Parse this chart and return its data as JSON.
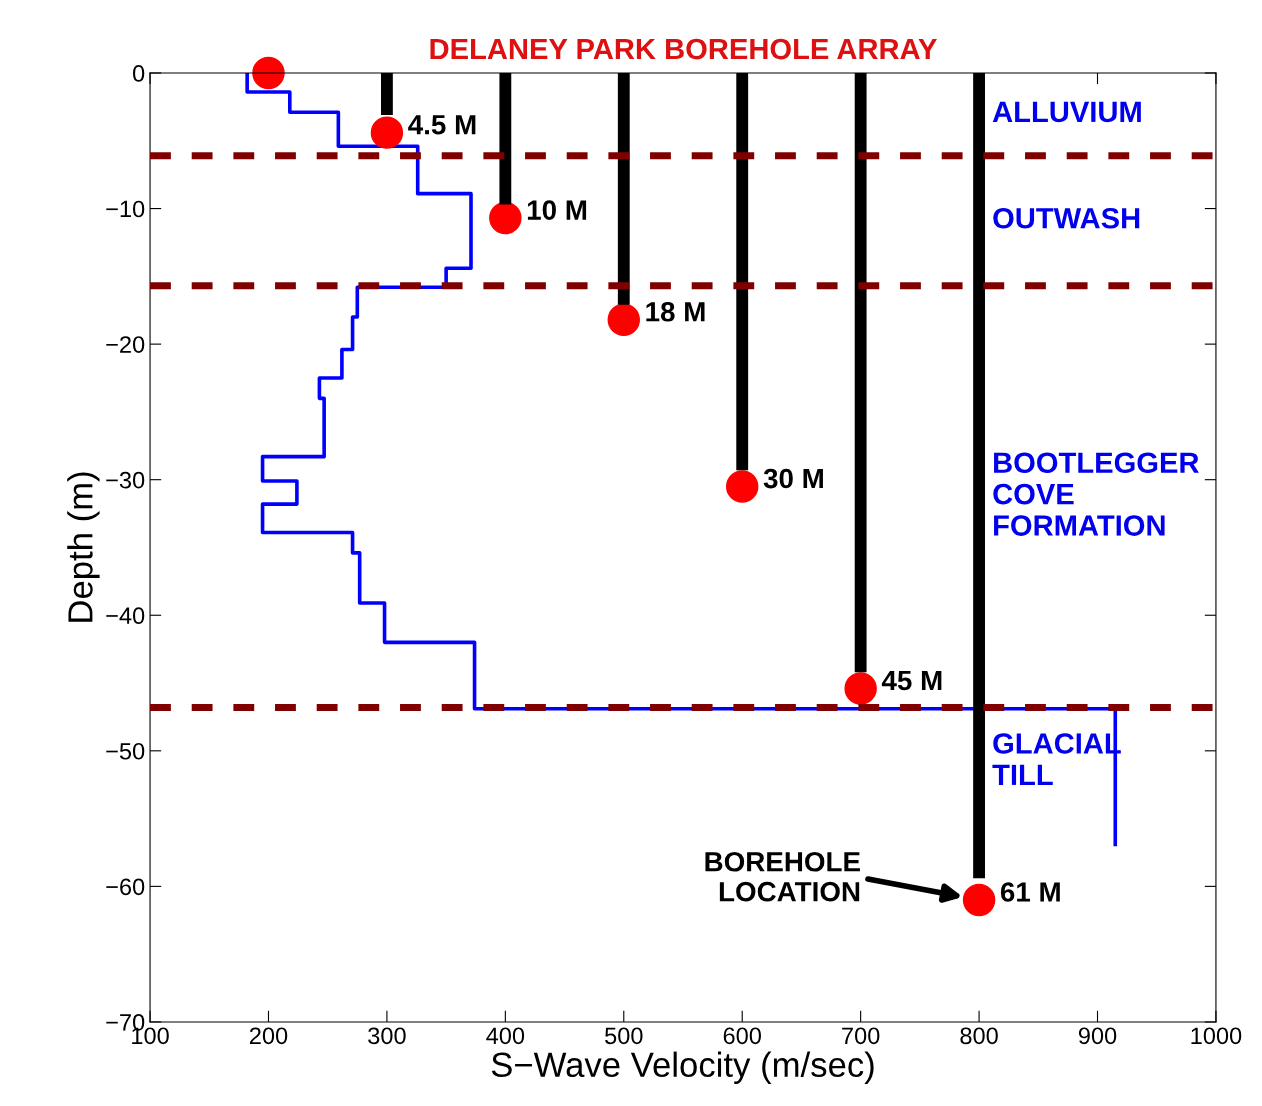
{
  "chart_data": {
    "type": "line",
    "title": "DELANEY PARK BOREHOLE ARRAY",
    "xlabel": "S−Wave Velocity (m/sec)",
    "ylabel": "Depth (m)",
    "xlim": [
      100,
      1000
    ],
    "xticks": [
      100,
      200,
      300,
      400,
      500,
      600,
      700,
      800,
      900,
      1000
    ],
    "ylim": [
      -70,
      0
    ],
    "yticks": [
      {
        "value": -70,
        "label": "−70"
      },
      {
        "value": -60,
        "label": "−60"
      },
      {
        "value": -50,
        "label": "−50"
      },
      {
        "value": -40,
        "label": "−40"
      },
      {
        "value": -30,
        "label": "−30"
      },
      {
        "value": -20,
        "label": "−20"
      },
      {
        "value": -10,
        "label": "−10"
      },
      0
    ],
    "grid": false,
    "series": [
      {
        "color": "#0000ff",
        "x": [
          182,
          182,
          218,
          218,
          259,
          259,
          326,
          326,
          371,
          371,
          350,
          350,
          275,
          275,
          271,
          271,
          262,
          262,
          243,
          243,
          247,
          247,
          195,
          195,
          224,
          224,
          195,
          195,
          271,
          271,
          277,
          277,
          298,
          298,
          374,
          374,
          915,
          915
        ],
        "values": [
          0,
          -1.4,
          -1.4,
          -2.9,
          -2.9,
          -5.4,
          -5.4,
          -8.9,
          -8.9,
          -14.4,
          -14.4,
          -15.8,
          -15.8,
          -18.0,
          -18.0,
          -20.4,
          -20.4,
          -22.5,
          -22.5,
          -24.0,
          -24.0,
          -28.3,
          -28.3,
          -30.1,
          -30.1,
          -31.8,
          -31.8,
          -33.9,
          -33.9,
          -35.4,
          -35.4,
          -39.1,
          -39.1,
          -42.0,
          -42.0,
          -46.9,
          -46.9,
          -56.9
        ]
      },
      {
        "type": "bar",
        "color": "#000000",
        "x": [
          300,
          400,
          500,
          600,
          700,
          800
        ],
        "values": [
          -3.1,
          -9.7,
          -17.1,
          -29.3,
          -44.2,
          -59.4
        ]
      },
      {
        "type": "scatter",
        "color": "#ff0000",
        "marker": "circle",
        "x": [
          200,
          300,
          400,
          500,
          600,
          700,
          800
        ],
        "values": [
          0,
          -4.4,
          -10.7,
          -18.2,
          -30.5,
          -45.4,
          -61.0
        ]
      }
    ],
    "ref_lines": [
      {
        "axis": "y",
        "value": -6.1,
        "color": "#800000",
        "line_style": "dashed"
      },
      {
        "axis": "y",
        "value": -15.7,
        "color": "#800000",
        "line_style": "dashed"
      },
      {
        "axis": "y",
        "value": -46.8,
        "color": "#800000",
        "line_style": "dashed"
      }
    ],
    "annotations": [
      {
        "text": "4.5 M",
        "x": 300,
        "y": -4.4
      },
      {
        "text": "10 M",
        "x": 400,
        "y": -10.7
      },
      {
        "text": "18 M",
        "x": 500,
        "y": -18.2
      },
      {
        "text": "30 M",
        "x": 600,
        "y": -30.5
      },
      {
        "text": "45 M",
        "x": 700,
        "y": -45.4
      },
      {
        "text": "61 M",
        "x": 800,
        "y": -61.0
      },
      "ALLUVIUM",
      "OUTWASH",
      "BOOTLEGGER\nCOVE\nFORMATION",
      "GLACIAL\nTILL",
      "BOREHOLE\nLOCATION"
    ]
  }
}
